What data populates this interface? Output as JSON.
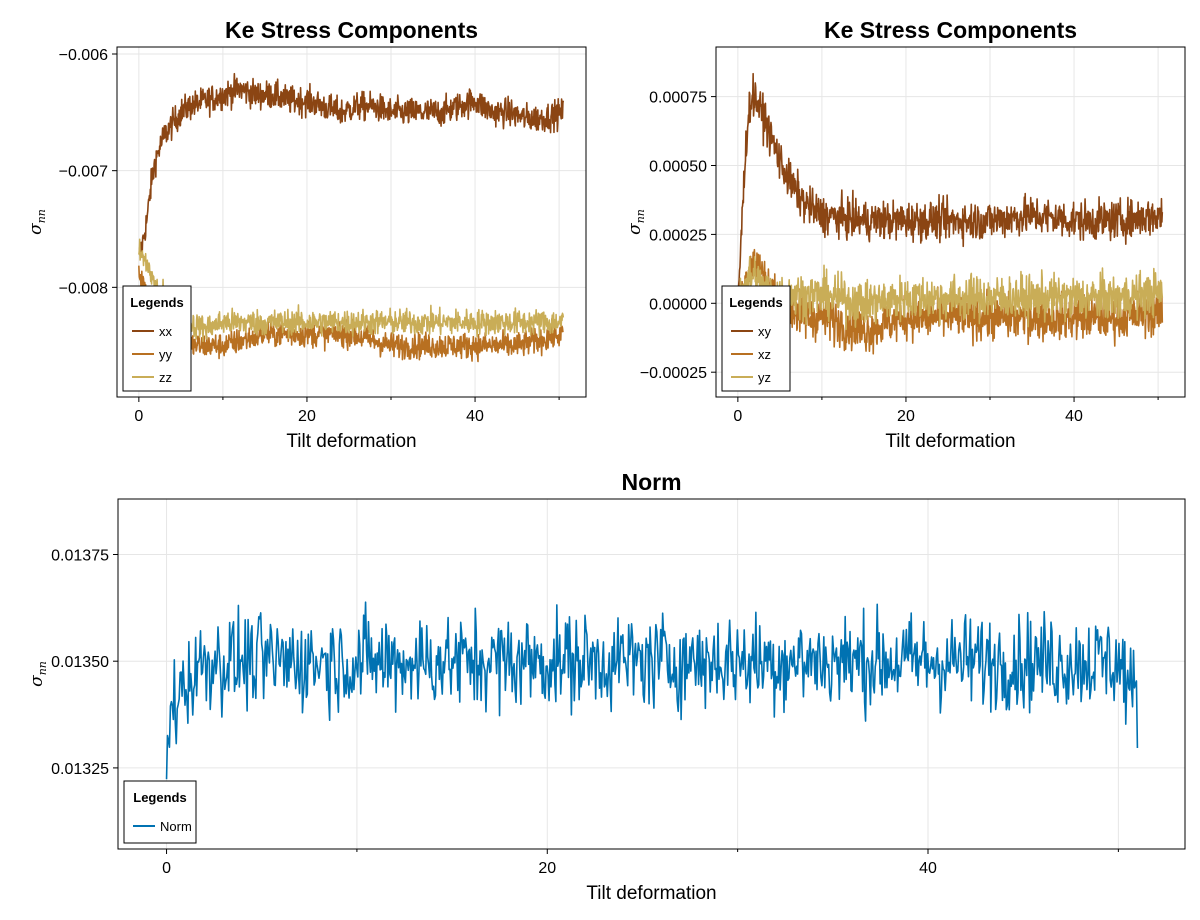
{
  "chart_data": [
    {
      "type": "line",
      "title": "Ke Stress Components",
      "xlabel": "Tilt deformation",
      "ylabel": "σ",
      "ylabel_sub": "nn",
      "xlim": [
        -2.6,
        53.2
      ],
      "ylim": [
        -0.00894,
        -0.00594
      ],
      "xticks": [
        0,
        20,
        40
      ],
      "xticks_minor": [
        10,
        30,
        50
      ],
      "yticks": [
        -0.006,
        -0.007,
        -0.008
      ],
      "ytick_labels": [
        "−0.006",
        "−0.007",
        "−0.008"
      ],
      "grid": true,
      "legend": {
        "title": "Legends",
        "position": "bottom-left"
      },
      "series": [
        {
          "name": "xx",
          "color": "#8b4513",
          "x": [
            0,
            0.5,
            1,
            1.5,
            2,
            3,
            4,
            5,
            6,
            8,
            10,
            12,
            14,
            16,
            18,
            20,
            22,
            24,
            26,
            28,
            30,
            32,
            34,
            36,
            38,
            40,
            42,
            44,
            46,
            48,
            50.5
          ],
          "y": [
            -0.00775,
            -0.0076,
            -0.0074,
            -0.0071,
            -0.0069,
            -0.0067,
            -0.0066,
            -0.0065,
            -0.00645,
            -0.0064,
            -0.00635,
            -0.0063,
            -0.00635,
            -0.00635,
            -0.0064,
            -0.0064,
            -0.00645,
            -0.0065,
            -0.00645,
            -0.00645,
            -0.0065,
            -0.0065,
            -0.0065,
            -0.0065,
            -0.00645,
            -0.0064,
            -0.0065,
            -0.0065,
            -0.00655,
            -0.00655,
            -0.0065
          ],
          "noise": 0.00012
        },
        {
          "name": "yy",
          "color": "#b87021",
          "x": [
            0,
            1,
            2,
            3,
            5,
            8,
            10,
            15,
            20,
            25,
            30,
            35,
            40,
            45,
            50.5
          ],
          "y": [
            -0.00785,
            -0.0081,
            -0.0083,
            -0.0085,
            -0.0085,
            -0.0085,
            -0.0085,
            -0.0084,
            -0.0084,
            -0.0084,
            -0.0085,
            -0.0085,
            -0.0085,
            -0.0085,
            -0.0084
          ],
          "noise": 0.00011
        },
        {
          "name": "zz",
          "color": "#c9ad57",
          "x": [
            0,
            1,
            2,
            3,
            5,
            8,
            10,
            15,
            20,
            25,
            30,
            35,
            40,
            45,
            50.5
          ],
          "y": [
            -0.0077,
            -0.0078,
            -0.008,
            -0.0081,
            -0.0083,
            -0.00835,
            -0.0083,
            -0.0083,
            -0.0083,
            -0.0083,
            -0.0083,
            -0.0083,
            -0.0083,
            -0.0083,
            -0.0083
          ],
          "noise": 0.00011
        }
      ]
    },
    {
      "type": "line",
      "title": "Ke Stress Components",
      "xlabel": "Tilt deformation",
      "ylabel": "σ",
      "ylabel_sub": "nn",
      "xlim": [
        -2.6,
        53.2
      ],
      "ylim": [
        -0.00034,
        0.00093
      ],
      "xticks": [
        0,
        20,
        40
      ],
      "xticks_minor": [
        10,
        30,
        50
      ],
      "yticks": [
        0.00075,
        0.0005,
        0.00025,
        0,
        -0.00025
      ],
      "ytick_labels": [
        "0.00075",
        "0.00050",
        "0.00025",
        "0.00000",
        "−0.00025"
      ],
      "grid": true,
      "legend": {
        "title": "Legends",
        "position": "bottom-left"
      },
      "series": [
        {
          "name": "xy",
          "color": "#8b4513",
          "x": [
            0,
            0.5,
            1,
            1.5,
            2,
            3,
            4,
            5,
            6,
            8,
            10,
            15,
            20,
            25,
            30,
            35,
            40,
            45,
            50.5
          ],
          "y": [
            0,
            0.0003,
            0.0006,
            0.00074,
            0.00075,
            0.00068,
            0.0006,
            0.00052,
            0.00045,
            0.00036,
            0.00032,
            0.0003,
            0.0003,
            0.0003,
            0.0003,
            0.00032,
            0.0003,
            0.0003,
            0.00032
          ],
          "noise": 7e-05
        },
        {
          "name": "xz",
          "color": "#b87021",
          "x": [
            0,
            1,
            2,
            3,
            5,
            8,
            10,
            15,
            20,
            25,
            30,
            35,
            40,
            45,
            50.5
          ],
          "y": [
            0,
            0.0001,
            0.00015,
            0.0001,
            0,
            -5e-05,
            -5e-05,
            -0.0001,
            -5e-05,
            -5e-05,
            -5e-05,
            -5e-05,
            -5e-05,
            -5e-05,
            -3e-05
          ],
          "noise": 8e-05
        },
        {
          "name": "yz",
          "color": "#c9ad57",
          "x": [
            0,
            1,
            2,
            3,
            5,
            8,
            10,
            15,
            20,
            25,
            30,
            35,
            40,
            45,
            50.5
          ],
          "y": [
            0,
            8e-05,
            0.0001,
            5e-05,
            3e-05,
            3e-05,
            3e-05,
            0,
            2e-05,
            2e-05,
            2e-05,
            2e-05,
            2e-05,
            2e-05,
            4e-05
          ],
          "noise": 8e-05
        }
      ]
    },
    {
      "type": "line",
      "title": "Norm",
      "xlabel": "Tilt deformation",
      "ylabel": "σ",
      "ylabel_sub": "nn",
      "xlim": [
        -2.55,
        53.5
      ],
      "ylim": [
        0.01306,
        0.01388
      ],
      "xticks": [
        0,
        20,
        40
      ],
      "xticks_minor": [
        10,
        30,
        50
      ],
      "yticks": [
        0.01375,
        0.0135,
        0.01325
      ],
      "ytick_labels": [
        "0.01375",
        "0.01350",
        "0.01325"
      ],
      "grid": true,
      "legend": {
        "title": "Legends",
        "position": "bottom-left"
      },
      "series": [
        {
          "name": "Norm",
          "color": "#0072b2",
          "x": [
            0,
            0.3,
            1,
            2,
            5,
            10,
            15,
            20,
            25,
            30,
            35,
            40,
            45,
            50,
            51
          ],
          "y": [
            0.01325,
            0.0134,
            0.01345,
            0.0135,
            0.0135,
            0.0135,
            0.0135,
            0.0135,
            0.0135,
            0.0135,
            0.0135,
            0.0135,
            0.0135,
            0.0135,
            0.0134
          ],
          "noise": 0.00011
        }
      ]
    }
  ]
}
